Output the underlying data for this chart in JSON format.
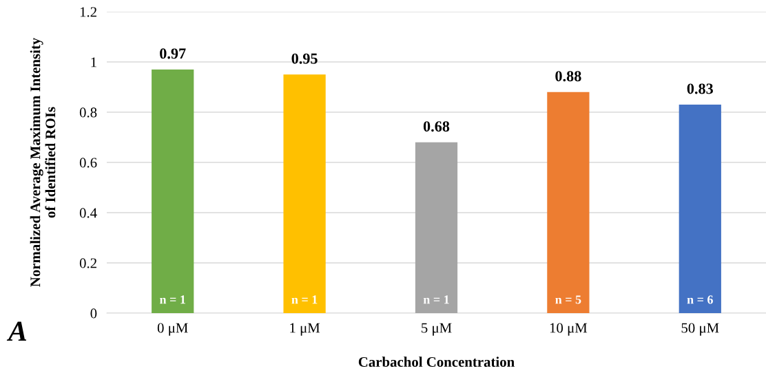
{
  "chart_data": {
    "type": "bar",
    "xlabel": "Carbachol Concentration",
    "ylabel": "Normalized Average Maximum Intensity\nof Identified ROIs",
    "categories": [
      "0 μM",
      "1 μM",
      "5 μM",
      "10 μM",
      "50 μM"
    ],
    "values": [
      0.97,
      0.95,
      0.68,
      0.88,
      0.83
    ],
    "colors": [
      "#70ad47",
      "#ffc000",
      "#a5a5a5",
      "#ed7d31",
      "#4472c4"
    ],
    "data_labels": true,
    "ylim": [
      0,
      1.2
    ],
    "yticks": [
      0,
      0.2,
      0.4,
      0.6,
      0.8,
      1,
      1.2
    ],
    "grid": "y",
    "annotations": [
      "n = 1",
      "n = 1",
      "n = 1",
      "n = 5",
      "n = 6",
      "A"
    ]
  }
}
